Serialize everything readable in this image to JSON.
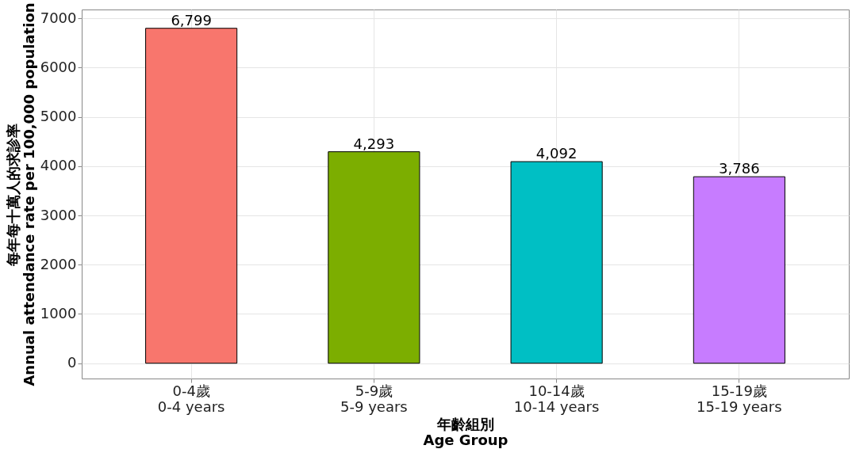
{
  "chart_data": {
    "type": "bar",
    "xlabel": "年齡組別\nAge Group",
    "ylabel": "每年每十萬人的求診率\nAnnual attendance rate per 100,000 population",
    "categories": [
      "0-4歲\n0-4 years",
      "5-9歲\n5-9 years",
      "10-14歲\n10-14 years",
      "15-19歲\n15-19 years"
    ],
    "values": [
      6799,
      4293,
      4092,
      3786
    ],
    "colors": [
      "#f8766d",
      "#7cae00",
      "#00bfc4",
      "#c77cff"
    ],
    "value_labels": [
      "6,799",
      "4,293",
      "4,092",
      "3,786"
    ],
    "ylim": [
      -310,
      7180
    ],
    "yticks": [
      0,
      1000,
      2000,
      3000,
      4000,
      5000,
      6000,
      7000
    ],
    "grid": true,
    "legend": false
  }
}
